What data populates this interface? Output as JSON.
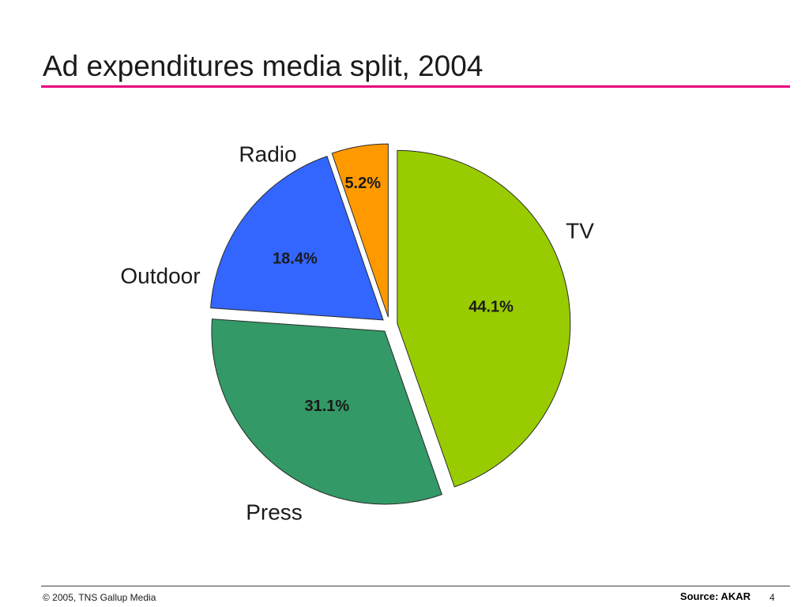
{
  "slide": {
    "title": "Ad expenditures media split, 2004",
    "accent_color": "#e8007a",
    "footer_copyright": "© 2005, TNS Gallup Media",
    "footer_source": "Source: AKAR",
    "page_number": "4"
  },
  "chart_data": {
    "type": "pie",
    "title": "Ad expenditures media split, 2004",
    "slices": [
      {
        "label": "TV",
        "value": 44.1,
        "display": "44.1%",
        "color": "#99cc00"
      },
      {
        "label": "Press",
        "value": 31.1,
        "display": "31.1%",
        "color": "#339966"
      },
      {
        "label": "Outdoor",
        "value": 18.4,
        "display": "18.4%",
        "color": "#3366ff"
      },
      {
        "label": "Radio",
        "value": 5.2,
        "display": "5.2%",
        "color": "#ff9900"
      }
    ],
    "exploded": true,
    "start": "top, clockwise",
    "legend": "none"
  }
}
